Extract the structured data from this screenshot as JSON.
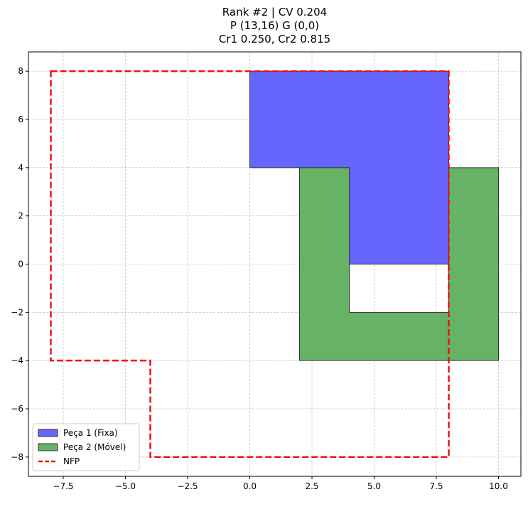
{
  "chart_data": {
    "type": "polygon-plot",
    "title_lines": [
      "Rank #2 | CV 0.204",
      "P (13,16) G (0,0)",
      "Cr1 0.250, Cr2 0.815"
    ],
    "xlim": [
      -8.9,
      10.9
    ],
    "ylim": [
      -8.8,
      8.8
    ],
    "xticks": [
      -7.5,
      -5.0,
      -2.5,
      0.0,
      2.5,
      5.0,
      7.5,
      10.0
    ],
    "xtick_labels": [
      "−7.5",
      "−5.0",
      "−2.5",
      "0.0",
      "2.5",
      "5.0",
      "7.5",
      "10.0"
    ],
    "yticks": [
      -8,
      -6,
      -4,
      -2,
      0,
      2,
      4,
      6,
      8
    ],
    "ytick_labels": [
      "−8",
      "−6",
      "−4",
      "−2",
      "0",
      "2",
      "4",
      "6",
      "8"
    ],
    "grid": true,
    "legend_position": "lower-left",
    "series": [
      {
        "name": "Peça 1 (Fixa)",
        "kind": "filled-polygon",
        "color": "#6666ff",
        "points": [
          [
            0,
            4
          ],
          [
            0,
            8
          ],
          [
            8,
            8
          ],
          [
            8,
            0
          ],
          [
            4,
            0
          ],
          [
            4,
            4
          ]
        ]
      },
      {
        "name": "Peça 2 (Móvel)",
        "kind": "filled-polygon",
        "color": "#66b266",
        "points": [
          [
            2,
            -4
          ],
          [
            2,
            4
          ],
          [
            4,
            4
          ],
          [
            4,
            -2
          ],
          [
            8,
            -2
          ],
          [
            8,
            4
          ],
          [
            10,
            4
          ],
          [
            10,
            -4
          ]
        ]
      },
      {
        "name": "NFP",
        "kind": "dashed-outline",
        "color": "#ee1111",
        "points": [
          [
            -8,
            8
          ],
          [
            8,
            8
          ],
          [
            8,
            -8
          ],
          [
            -4,
            -8
          ],
          [
            -4,
            -4
          ],
          [
            -8,
            -4
          ]
        ]
      }
    ]
  }
}
